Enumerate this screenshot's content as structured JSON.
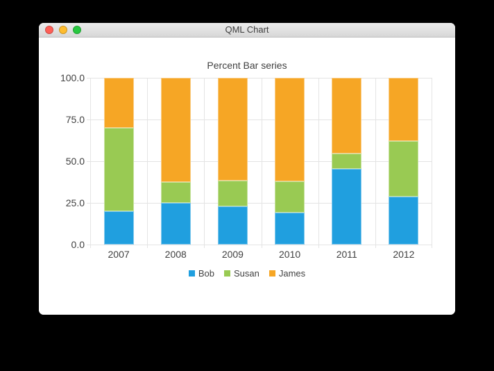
{
  "window": {
    "title": "QML Chart",
    "traffic_lights": [
      {
        "name": "close",
        "color": "#ff5f57"
      },
      {
        "name": "minimize",
        "color": "#febc2e"
      },
      {
        "name": "zoom",
        "color": "#28c840"
      }
    ]
  },
  "chart_data": {
    "type": "bar",
    "variant": "percent-stacked",
    "title": "Percent Bar series",
    "categories": [
      "2007",
      "2008",
      "2009",
      "2010",
      "2011",
      "2012"
    ],
    "series": [
      {
        "name": "Bob",
        "color": "#209fdf",
        "values_percent": [
          20.0,
          25.0,
          23.08,
          19.05,
          45.45,
          28.57
        ]
      },
      {
        "name": "Susan",
        "color": "#99ca53",
        "values_percent": [
          50.0,
          12.5,
          15.38,
          19.05,
          9.09,
          33.33
        ]
      },
      {
        "name": "James",
        "color": "#f6a625",
        "values_percent": [
          30.0,
          62.5,
          61.54,
          61.9,
          45.46,
          38.1
        ]
      }
    ],
    "ylim": [
      0,
      100
    ],
    "y_tick_labels": [
      "0.0",
      "25.0",
      "50.0",
      "75.0",
      "100.0"
    ],
    "grid": true,
    "legend_position": "bottom",
    "grid_color": "#e4e4e4",
    "text_color": "#404040"
  }
}
